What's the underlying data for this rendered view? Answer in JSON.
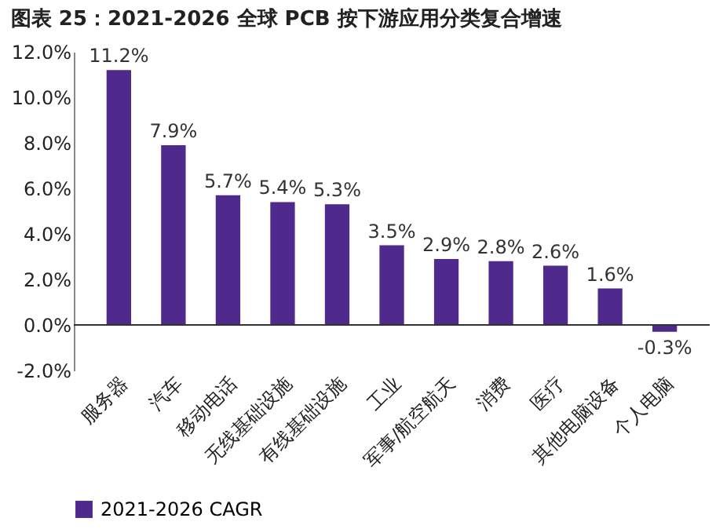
{
  "chart_data": {
    "type": "bar",
    "title": "图表 25：2021-2026 全球 PCB 按下游应用分类复合增速",
    "categories": [
      "服务器",
      "汽车",
      "移动电话",
      "无线基础设施",
      "有线基础设施",
      "工业",
      "军事/航空航天",
      "消费",
      "医疗",
      "其他电脑设备",
      "个人电脑"
    ],
    "series": [
      {
        "name": "2021-2026 CAGR",
        "color": "#4f2a8c",
        "values": [
          11.2,
          7.9,
          5.7,
          5.4,
          5.3,
          3.5,
          2.9,
          2.8,
          2.6,
          1.6,
          -0.3
        ],
        "value_labels": [
          "11.2%",
          "7.9%",
          "5.7%",
          "5.4%",
          "5.3%",
          "3.5%",
          "2.9%",
          "2.8%",
          "2.6%",
          "1.6%",
          "-0.3%"
        ]
      }
    ],
    "ylim": [
      -2,
      12
    ],
    "yticks": [
      {
        "value": -2,
        "label": "-2.0%"
      },
      {
        "value": 0,
        "label": "0.0%"
      },
      {
        "value": 2,
        "label": "2.0%"
      },
      {
        "value": 4,
        "label": "4.0%"
      },
      {
        "value": 6,
        "label": "6.0%"
      },
      {
        "value": 8,
        "label": "8.0%"
      },
      {
        "value": 10,
        "label": "10.0%"
      },
      {
        "value": 12,
        "label": "12.0%"
      }
    ],
    "grid": false,
    "legend": "bottom"
  }
}
